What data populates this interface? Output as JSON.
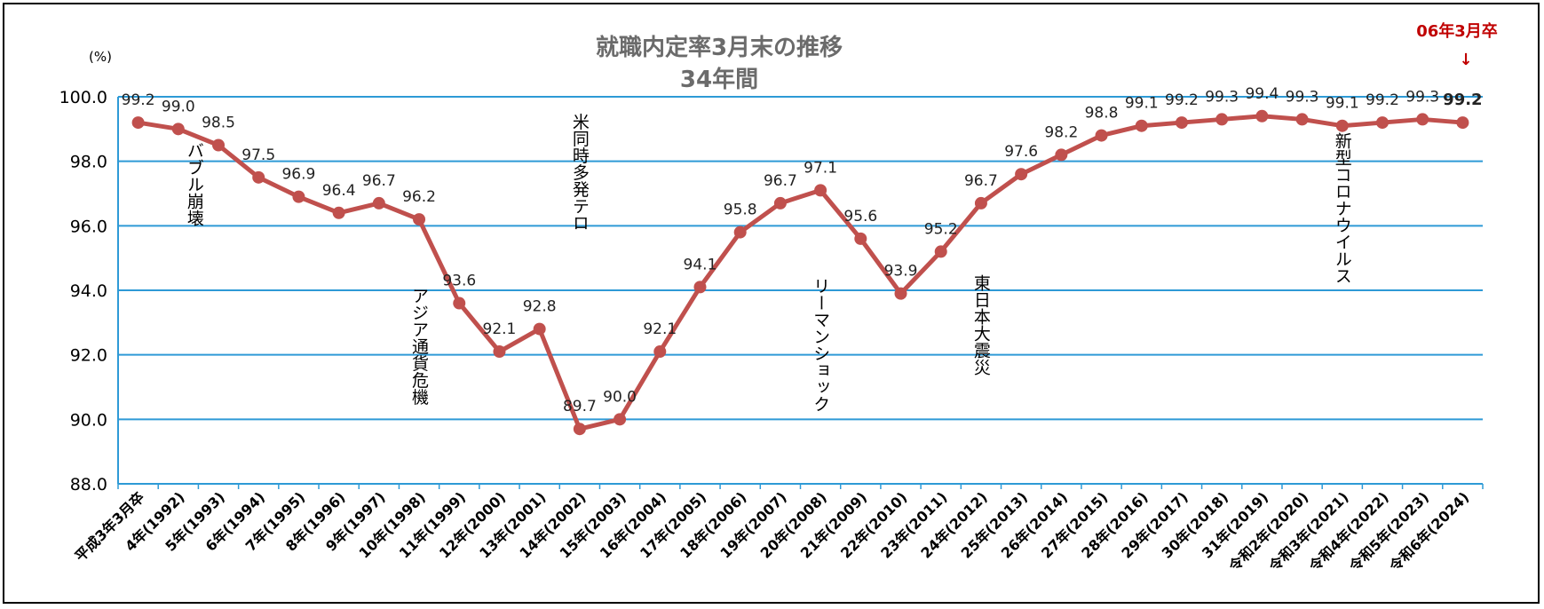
{
  "chart_data": {
    "type": "line",
    "title": "就職内定率3月末の推移",
    "subtitle": "34年間",
    "ylabel": "(%)",
    "ylim": [
      88.0,
      100.0
    ],
    "yticks": [
      "88.0",
      "90.0",
      "92.0",
      "94.0",
      "96.0",
      "98.0",
      "100.0"
    ],
    "grid": true,
    "categories": [
      "平成3年3月卒",
      "4年(1992)",
      "5年(1993)",
      "6年(1994)",
      "7年(1995)",
      "8年(1996)",
      "9年(1997)",
      "10年(1998)",
      "11年(1999)",
      "12年(2000)",
      "13年(2001)",
      "14年(2002)",
      "15年(2003)",
      "16年(2004)",
      "17年(2005)",
      "18年(2006)",
      "19年(2007)",
      "20年(2008)",
      "21年(2009)",
      "22年(2010)",
      "23年(2011)",
      "24年(2012)",
      "25年(2013)",
      "26年(2014)",
      "27年(2015)",
      "28年(2016)",
      "29年(2017)",
      "30年(2018)",
      "31年(2019)",
      "令和2年(2020)",
      "令和3年(2021)",
      "令和4年(2022)",
      "令和5年(2023)",
      "令和6年(2024)"
    ],
    "values": [
      99.2,
      99.0,
      98.5,
      97.5,
      96.9,
      96.4,
      96.7,
      96.2,
      93.6,
      92.1,
      92.8,
      89.7,
      90.0,
      92.1,
      94.1,
      95.8,
      96.7,
      97.1,
      95.6,
      93.9,
      95.2,
      96.7,
      97.6,
      98.2,
      98.8,
      99.1,
      99.2,
      99.3,
      99.4,
      99.3,
      99.1,
      99.2,
      99.3,
      99.2
    ],
    "value_labels": [
      "99.2",
      "99.0",
      "98.5",
      "97.5",
      "96.9",
      "96.4",
      "96.7",
      "96.2",
      "93.6",
      "92.1",
      "92.8",
      "89.7",
      "90.0",
      "92.1",
      "94.1",
      "95.8",
      "96.7",
      "97.1",
      "95.6",
      "93.9",
      "95.2",
      "96.7",
      "97.6",
      "98.2",
      "98.8",
      "99.1",
      "99.2",
      "99.3",
      "99.4",
      "99.3",
      "99.1",
      "99.2",
      "99.3",
      "99.2"
    ],
    "line_color": "#c0504d",
    "grid_color": "#2e9ad6",
    "axis_color": "#2e9ad6",
    "annotations": [
      {
        "text": "バブル崩壊",
        "index": 1.4,
        "y": 98.6
      },
      {
        "text": "アジア通貨危機",
        "index": 7.0,
        "y": 94.1
      },
      {
        "text": "米同時多発テロ",
        "index": 11.0,
        "y": 99.5
      },
      {
        "text": "リーマンショック",
        "index": 17.0,
        "y": 94.4
      },
      {
        "text": "東日本大震災",
        "index": 21.0,
        "y": 94.5
      },
      {
        "text": "新型コロナウイルス",
        "index": 30.0,
        "y": 98.9
      }
    ],
    "latest_marker": {
      "text": "06年3月卒",
      "arrow": "↓",
      "color": "#c00000"
    }
  }
}
